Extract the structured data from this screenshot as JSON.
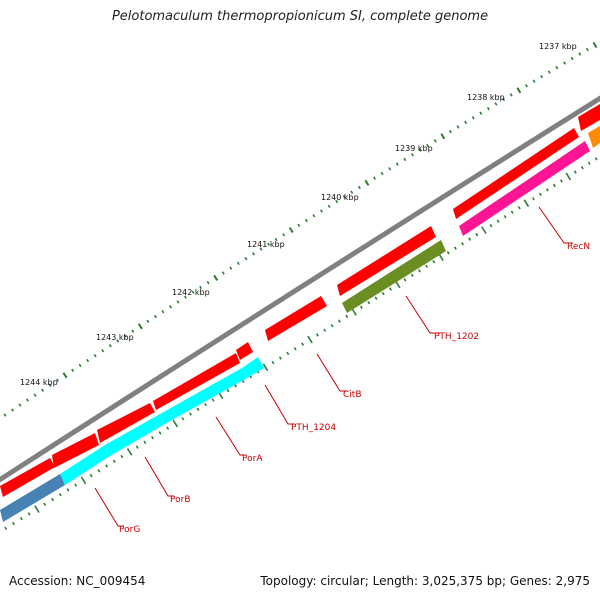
{
  "title": "Pelotomaculum thermopropionicum SI, complete genome",
  "footer": {
    "accession": "Accession: NC_009454",
    "summary": "Topology: circular; Length: 3,025,375 bp; Genes: 2,975"
  },
  "scale_labels": [
    "1237 kbp",
    "1238 kbp",
    "1239 kbp",
    "1240 kbp",
    "1241 kbp",
    "1242 kbp",
    "1243 kbp",
    "1244 kbp"
  ],
  "gene_labels": [
    "RecN",
    "PTH_1202",
    "CitB",
    "PTH_1204",
    "PorA",
    "PorB",
    "PorG"
  ],
  "colors": {
    "backbone": "#808080",
    "cds": "#ff0000",
    "tick": "#2e7d32",
    "label": "#cc0000",
    "recn": "#ff1493",
    "pth1202": "#6b8e23",
    "cyan": "#00ffff",
    "porg": "#4682b4",
    "orange": "#ff8c00"
  }
}
